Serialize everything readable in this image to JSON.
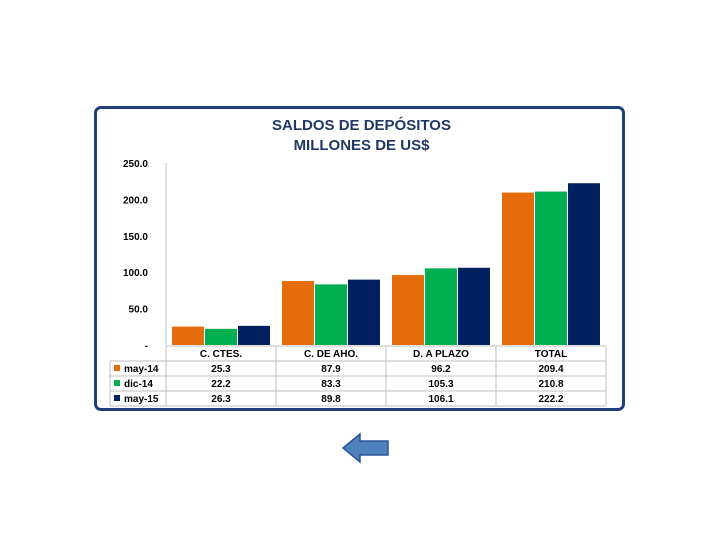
{
  "chart_data": {
    "type": "bar",
    "title": [
      "SALDOS DE DEPÓSITOS",
      "MILLONES DE US$"
    ],
    "categories": [
      "C. CTES.",
      "C. DE AHO.",
      "D. A PLAZO",
      "TOTAL"
    ],
    "series": [
      {
        "name": "may-14",
        "color": "#e46c0a",
        "values": [
          25.3,
          87.9,
          96.2,
          209.4
        ],
        "labels": [
          "25.3",
          "87.9",
          "96.2",
          "209.4"
        ]
      },
      {
        "name": "dic-14",
        "color": "#00b050",
        "values": [
          22.2,
          83.3,
          105.3,
          210.8
        ],
        "labels": [
          "22.2",
          "83.3",
          "105.3",
          "210.8"
        ]
      },
      {
        "name": "may-15",
        "color": "#002060",
        "values": [
          26.3,
          89.8,
          106.1,
          222.2
        ],
        "labels": [
          "26.3",
          "89.8",
          "106.1",
          "222.2"
        ]
      }
    ],
    "yticks": [
      0,
      50,
      100,
      150,
      200,
      250
    ],
    "ytick_labels": [
      "-",
      "50.0",
      "100.0",
      "150.0",
      "200.0",
      "250.0"
    ],
    "ylim": [
      0,
      250
    ],
    "grid": false,
    "data_table": true
  },
  "navigation": {
    "back_icon": "left-arrow-icon",
    "color": "#4f81bd"
  }
}
